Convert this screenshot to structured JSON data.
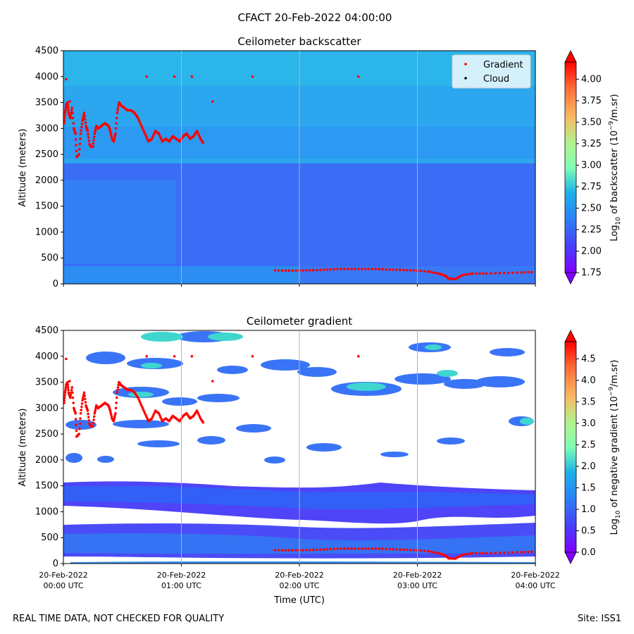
{
  "figure": {
    "title": "CFACT 20-Feb-2022 04:00:00",
    "footer_left": "REAL TIME DATA, NOT CHECKED FOR QUALITY",
    "footer_right": "Site: ISS1",
    "xlabel": "Time (UTC)"
  },
  "chart_data": [
    {
      "type": "heatmap",
      "title": "Ceilometer backscatter",
      "ylabel": "Altitude (meters)",
      "xlabel": "",
      "xlim": [
        "20-Feb-2022 00:00",
        "20-Feb-2022 04:00"
      ],
      "ylim": [
        0,
        4500
      ],
      "yticks": [
        "0",
        "500",
        "1000",
        "1500",
        "2000",
        "2500",
        "3000",
        "3500",
        "4000",
        "4500"
      ],
      "xticks": [],
      "grid": "vertical lines at each hour",
      "legend": {
        "placement": "top-right",
        "entries": [
          {
            "label": "Gradient",
            "color": "#ff0000"
          },
          {
            "label": "Cloud",
            "color": "#000000"
          }
        ]
      },
      "colorbar": {
        "label_prefix": "Log",
        "label_sub": "10",
        "label_mid": " of backscatter (10",
        "label_sup": "−9",
        "label_suffix": "/m.sr)",
        "min": 1.75,
        "max": 4.2,
        "ticks": [
          "1.75",
          "2.00",
          "2.25",
          "2.50",
          "2.75",
          "3.00",
          "3.25",
          "3.50",
          "3.75",
          "4.00"
        ],
        "colormap": "rainbow"
      },
      "field_bands": [
        {
          "alt": [
            0,
            300
          ],
          "value": 2.35
        },
        {
          "alt": [
            300,
            2300
          ],
          "value": 2.1
        },
        {
          "alt": [
            2300,
            4500
          ],
          "value": 2.35
        }
      ],
      "gradient_points": [
        {
          "t": 0.02,
          "alt": 3100
        },
        {
          "t": 0.05,
          "alt": 3300
        },
        {
          "t": 0.08,
          "alt": 3450
        },
        {
          "t": 0.12,
          "alt": 3500
        },
        {
          "t": 0.15,
          "alt": 3300
        },
        {
          "t": 0.2,
          "alt": 3200
        },
        {
          "t": 0.25,
          "alt": 3400
        },
        {
          "t": 0.3,
          "alt": 3000
        },
        {
          "t": 0.35,
          "alt": 2900
        },
        {
          "t": 0.38,
          "alt": 2450
        },
        {
          "t": 0.45,
          "alt": 2500
        },
        {
          "t": 0.5,
          "alt": 2900
        },
        {
          "t": 0.55,
          "alt": 3150
        },
        {
          "t": 0.6,
          "alt": 3300
        },
        {
          "t": 0.65,
          "alt": 3050
        },
        {
          "t": 0.7,
          "alt": 2950
        },
        {
          "t": 0.75,
          "alt": 2700
        },
        {
          "t": 0.8,
          "alt": 2650
        },
        {
          "t": 0.85,
          "alt": 2650
        },
        {
          "t": 0.9,
          "alt": 2900
        },
        {
          "t": 0.95,
          "alt": 3050
        },
        {
          "t": 1.0,
          "alt": 3000
        },
        {
          "t": 1.1,
          "alt": 3050
        },
        {
          "t": 1.2,
          "alt": 3100
        },
        {
          "t": 1.3,
          "alt": 3050
        },
        {
          "t": 1.35,
          "alt": 2950
        },
        {
          "t": 1.4,
          "alt": 2800
        },
        {
          "t": 1.45,
          "alt": 2750
        },
        {
          "t": 1.5,
          "alt": 2900
        },
        {
          "t": 1.55,
          "alt": 3300
        },
        {
          "t": 1.6,
          "alt": 3500
        },
        {
          "t": 1.65,
          "alt": 3450
        },
        {
          "t": 1.75,
          "alt": 3400
        },
        {
          "t": 1.85,
          "alt": 3350
        },
        {
          "t": 1.95,
          "alt": 3350
        },
        {
          "t": 2.05,
          "alt": 3300
        },
        {
          "t": 2.15,
          "alt": 3200
        },
        {
          "t": 2.25,
          "alt": 3050
        },
        {
          "t": 2.35,
          "alt": 2900
        },
        {
          "t": 2.45,
          "alt": 2750
        },
        {
          "t": 2.55,
          "alt": 2800
        },
        {
          "t": 2.65,
          "alt": 2950
        },
        {
          "t": 2.75,
          "alt": 2900
        },
        {
          "t": 2.85,
          "alt": 2750
        },
        {
          "t": 2.95,
          "alt": 2800
        },
        {
          "t": 3.05,
          "alt": 2750
        },
        {
          "t": 3.15,
          "alt": 2850
        },
        {
          "t": 3.25,
          "alt": 2800
        },
        {
          "t": 3.35,
          "alt": 2750
        },
        {
          "t": 3.45,
          "alt": 2850
        },
        {
          "t": 3.55,
          "alt": 2900
        },
        {
          "t": 3.65,
          "alt": 2800
        },
        {
          "t": 3.75,
          "alt": 2850
        },
        {
          "t": 3.85,
          "alt": 2950
        },
        {
          "t": 3.95,
          "alt": 2800
        },
        {
          "t": 4.05,
          "alt": 2700
        },
        {
          "t": 6.1,
          "alt": 260
        },
        {
          "t": 6.5,
          "alt": 255
        },
        {
          "t": 6.9,
          "alt": 260
        },
        {
          "t": 7.3,
          "alt": 265
        },
        {
          "t": 7.7,
          "alt": 280
        },
        {
          "t": 8.1,
          "alt": 290
        },
        {
          "t": 8.5,
          "alt": 285
        },
        {
          "t": 8.9,
          "alt": 290
        },
        {
          "t": 9.3,
          "alt": 280
        },
        {
          "t": 9.7,
          "alt": 270
        },
        {
          "t": 10.1,
          "alt": 260
        },
        {
          "t": 10.5,
          "alt": 240
        },
        {
          "t": 10.8,
          "alt": 200
        },
        {
          "t": 11.0,
          "alt": 160
        },
        {
          "t": 11.1,
          "alt": 100
        },
        {
          "t": 11.3,
          "alt": 95
        },
        {
          "t": 11.5,
          "alt": 170
        },
        {
          "t": 11.8,
          "alt": 200
        },
        {
          "t": 12.2,
          "alt": 200
        },
        {
          "t": 12.7,
          "alt": 210
        },
        {
          "t": 13.2,
          "alt": 220
        },
        {
          "t": 13.6,
          "alt": 230
        }
      ],
      "isolated_points": [
        {
          "t": 0.08,
          "alt": 3950
        },
        {
          "t": 0.18,
          "alt": 3520
        },
        {
          "t": 2.4,
          "alt": 4000
        },
        {
          "t": 3.2,
          "alt": 4000
        },
        {
          "t": 3.7,
          "alt": 4000
        },
        {
          "t": 5.45,
          "alt": 4000
        },
        {
          "t": 8.5,
          "alt": 4000
        },
        {
          "t": 4.3,
          "alt": 3520
        }
      ]
    },
    {
      "type": "heatmap",
      "title": "Ceilometer gradient",
      "ylabel": "Altitude (meters)",
      "xlabel": "Time (UTC)",
      "xlim": [
        "20-Feb-2022 00:00",
        "20-Feb-2022 04:00"
      ],
      "ylim": [
        0,
        4500
      ],
      "yticks": [
        "0",
        "500",
        "1000",
        "1500",
        "2000",
        "2500",
        "3000",
        "3500",
        "4000",
        "4500"
      ],
      "xticks": [
        {
          "date": "20-Feb-2022",
          "time": "00:00 UTC"
        },
        {
          "date": "20-Feb-2022",
          "time": "01:00 UTC"
        },
        {
          "date": "20-Feb-2022",
          "time": "02:00 UTC"
        },
        {
          "date": "20-Feb-2022",
          "time": "03:00 UTC"
        },
        {
          "date": "20-Feb-2022",
          "time": "04:00 UTC"
        }
      ],
      "grid": "vertical lines at each hour",
      "colorbar": {
        "label_prefix": "Log",
        "label_sub": "10",
        "label_mid": " of negative gradient (10",
        "label_sup": "−9",
        "label_suffix": "/m.sr)",
        "min": 0.0,
        "max": 4.9,
        "ticks": [
          "0.0",
          "0.5",
          "1.0",
          "1.5",
          "2.0",
          "2.5",
          "3.0",
          "3.5",
          "4.0",
          "4.5"
        ],
        "colormap": "rainbow"
      },
      "layers": [
        {
          "alt": [
            150,
            750
          ],
          "value": 0.9
        },
        {
          "alt": [
            1150,
            1600
          ],
          "value": 0.8
        }
      ]
    }
  ]
}
